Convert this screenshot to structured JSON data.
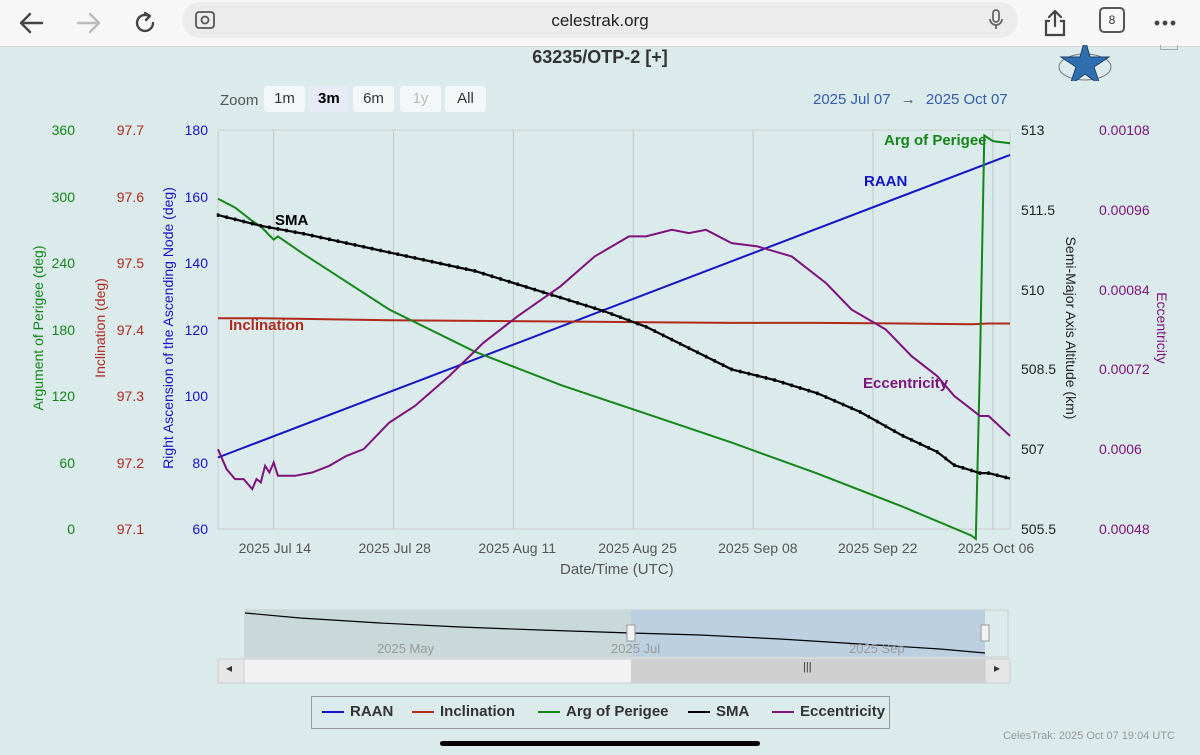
{
  "browser": {
    "url": "celestrak.org",
    "tab_count": "8"
  },
  "chart_title": "63235/OTP-2 [+]",
  "zoom": {
    "label": "Zoom",
    "buttons": [
      "1m",
      "3m",
      "6m",
      "1y",
      "All"
    ],
    "selected": "3m",
    "disabled": "1y"
  },
  "range": {
    "from": "2025 Jul 07",
    "arrow": "→",
    "to": "2025 Oct 07"
  },
  "navigator": {
    "labels": [
      "2025 May",
      "2025 Jul",
      "2025 Sep"
    ],
    "scroll_grip": "|||",
    "left_arrow": "◂",
    "right_arrow": "▸"
  },
  "legend": [
    "RAAN",
    "Inclination",
    "Arg of Perigee",
    "SMA",
    "Eccentricity"
  ],
  "credit": "CelesTrak: 2025 Oct 07 19:04 UTC",
  "colors": {
    "raan": "#1515c8",
    "inclination": "#b0291d",
    "argp": "#13871a",
    "sma": "#000000",
    "ecc": "#7d117d"
  },
  "chart_data": {
    "type": "line",
    "title": "63235/OTP-2 [+]",
    "xlabel": "Date/Time (UTC)",
    "x_ticks": [
      "2025 Jul 14",
      "2025 Jul 28",
      "2025 Aug 11",
      "2025 Aug 25",
      "2025 Sep 08",
      "2025 Sep 22",
      "2025 Oct 06"
    ],
    "x_range_days": [
      0,
      92.5
    ],
    "x_tick_days": [
      6.5,
      20.5,
      34.5,
      48.5,
      62.5,
      76.5,
      90.5
    ],
    "axes": {
      "argp": {
        "label": "Argument of Perigee (deg)",
        "ticks": [
          "0",
          "60",
          "120",
          "180",
          "240",
          "300",
          "360"
        ],
        "range": [
          0,
          360
        ]
      },
      "inclination": {
        "label": "Inclination (deg)",
        "ticks": [
          "97.1",
          "97.2",
          "97.3",
          "97.4",
          "97.5",
          "97.6",
          "97.7"
        ],
        "range": [
          97.1,
          97.7
        ]
      },
      "raan": {
        "label": "Right Ascension of the Ascending Node (deg)",
        "ticks": [
          "60",
          "80",
          "100",
          "120",
          "140",
          "160",
          "180"
        ],
        "range": [
          60,
          180
        ]
      },
      "sma": {
        "label": "Semi-Major Axis Altitude (km)",
        "ticks": [
          "505.5",
          "507",
          "508.5",
          "510",
          "511.5",
          "513"
        ],
        "range": [
          505.5,
          513
        ]
      },
      "ecc": {
        "label": "Eccentricity",
        "ticks": [
          "0.00048",
          "0.0006",
          "0.00072",
          "0.00084",
          "0.00096",
          "0.00108"
        ],
        "range": [
          0.00048,
          0.00108
        ]
      }
    },
    "annotations": [
      "SMA",
      "Inclination",
      "RAAN",
      "Arg of Perigee",
      "Eccentricity"
    ],
    "series": [
      {
        "name": "RAAN",
        "key": "raan",
        "x": [
          0,
          92.5
        ],
        "y": [
          81.5,
          172.5
        ]
      },
      {
        "name": "Inclination",
        "key": "inclination",
        "x": [
          0,
          5,
          10,
          20,
          30,
          40,
          50,
          60,
          70,
          80,
          88,
          90,
          92.5
        ],
        "y": [
          97.417,
          97.417,
          97.416,
          97.414,
          97.413,
          97.412,
          97.411,
          97.41,
          97.41,
          97.409,
          97.408,
          97.409,
          97.409
        ]
      },
      {
        "name": "Arg of Perigee",
        "key": "argp",
        "x": [
          0,
          2,
          4,
          5,
          6,
          6.5,
          7,
          10,
          20,
          30,
          40,
          50,
          60,
          70,
          80,
          88,
          88.5,
          89,
          89.5,
          90.5,
          92.5
        ],
        "y": [
          298,
          290,
          278,
          273,
          265,
          261,
          264,
          248,
          198,
          160,
          130,
          104,
          78,
          50,
          20,
          -6,
          -9,
          150,
          355,
          350,
          348
        ]
      },
      {
        "name": "SMA",
        "key": "sma",
        "x": [
          0,
          5,
          10,
          20,
          30,
          40,
          45,
          50,
          55,
          60,
          65,
          70,
          75,
          80,
          84,
          86,
          87,
          88,
          89,
          90,
          92.5
        ],
        "y": [
          511.4,
          511.2,
          511.05,
          510.7,
          510.35,
          509.85,
          509.6,
          509.3,
          508.9,
          508.5,
          508.3,
          508.05,
          507.7,
          507.25,
          506.95,
          506.7,
          506.65,
          506.6,
          506.55,
          506.55,
          506.45
        ]
      },
      {
        "name": "Eccentricity",
        "key": "ecc",
        "x": [
          0,
          1,
          2,
          3,
          4,
          4.5,
          5,
          5.5,
          6,
          6.5,
          7,
          9,
          11,
          13,
          15,
          17,
          20,
          23,
          27,
          31,
          35,
          40,
          44,
          48,
          50,
          53,
          55,
          57,
          60,
          63,
          67,
          71,
          74,
          78,
          81,
          84,
          86,
          88,
          89,
          90,
          92.5
        ],
        "y": [
          0.0006,
          0.00057,
          0.000555,
          0.000555,
          0.00054,
          0.000555,
          0.00055,
          0.000575,
          0.000565,
          0.00058,
          0.00056,
          0.00056,
          0.000565,
          0.000575,
          0.00059,
          0.0006,
          0.00064,
          0.000665,
          0.00071,
          0.00076,
          0.0008,
          0.000845,
          0.00089,
          0.00092,
          0.00092,
          0.00093,
          0.000925,
          0.00093,
          0.00091,
          0.000905,
          0.00089,
          0.00085,
          0.00081,
          0.00078,
          0.00074,
          0.00071,
          0.00068,
          0.00066,
          0.00065,
          0.00065,
          0.00062
        ]
      }
    ]
  }
}
